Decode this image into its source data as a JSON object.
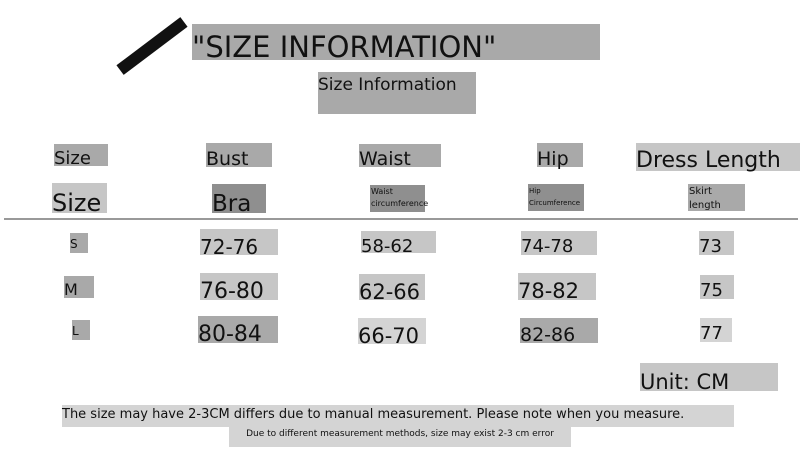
{
  "title": "\"SIZE INFORMATION\"",
  "subtitle": "Size Information",
  "headers": [
    "Size",
    "Bust",
    "Waist",
    "Hip",
    "Dress Length"
  ],
  "subheaders": [
    "Size",
    "Bra",
    "Waist circumference",
    "Hip Circumference",
    "Skirt length"
  ],
  "rows": [
    {
      "size": "S",
      "bust": "72-76",
      "waist": "58-62",
      "hip": "74-78",
      "length": "73"
    },
    {
      "size": "M",
      "bust": "76-80",
      "waist": "62-66",
      "hip": "78-82",
      "length": "75"
    },
    {
      "size": "L",
      "bust": "80-84",
      "waist": "66-70",
      "hip": "82-86",
      "length": "77"
    }
  ],
  "unit": "Unit: CM",
  "note1": "The size may have 2-3CM differs due to manual measurement. Please note when you measure.",
  "note2": "Due to different measurement methods, size may exist 2-3 cm error"
}
